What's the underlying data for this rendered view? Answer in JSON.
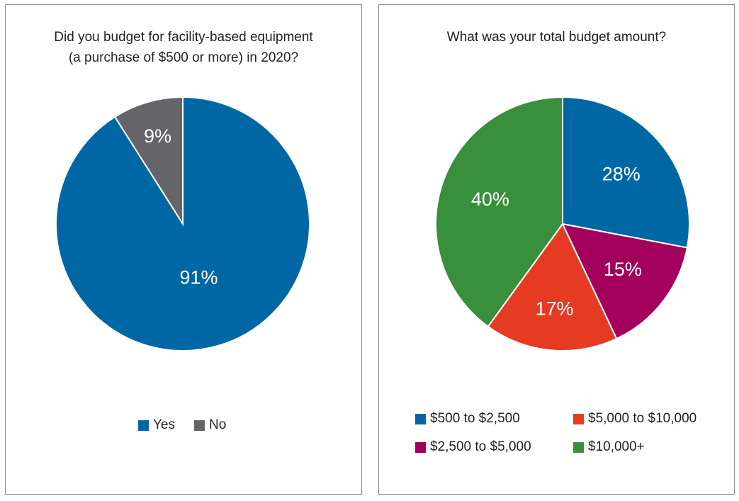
{
  "chart_data": [
    {
      "type": "pie",
      "title": "Did you budget for facility-based equipment\n(a purchase of $500 or more) in 2020?",
      "slices": [
        {
          "name": "Yes",
          "value": 91,
          "label": "91%",
          "color": "#0067a5"
        },
        {
          "name": "No",
          "value": 9,
          "label": "9%",
          "color": "#646469"
        }
      ],
      "legend_position": "bottom"
    },
    {
      "type": "pie",
      "title": "What was your total budget amount?",
      "slices": [
        {
          "name": "$500 to $2,500",
          "value": 28,
          "label": "28%",
          "color": "#0067a5"
        },
        {
          "name": "$2,500 to $5,000",
          "value": 15,
          "label": "15%",
          "color": "#a3005e"
        },
        {
          "name": "$5,000 to $10,000",
          "value": 17,
          "label": "17%",
          "color": "#e53b22"
        },
        {
          "name": "$10,000+",
          "value": 40,
          "label": "40%",
          "color": "#3a8f3d"
        }
      ],
      "legend_position": "bottom"
    }
  ]
}
